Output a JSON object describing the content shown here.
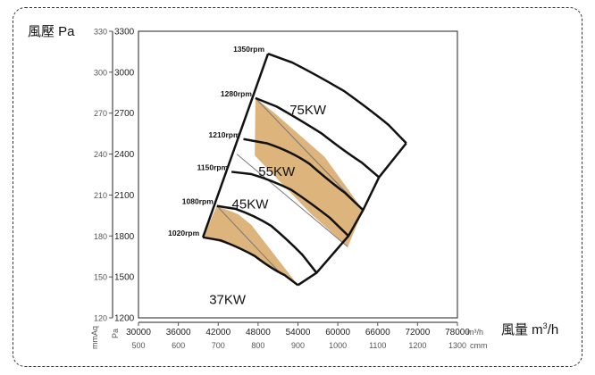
{
  "chart_data": {
    "type": "fan_curve",
    "y_title": "風壓 Pa",
    "y_unit_mmaq": "mmAq",
    "y_pa_ticks": [
      3300,
      3000,
      2700,
      2400,
      2100,
      1800,
      1500,
      1200
    ],
    "y_mmaq_ticks": [
      330,
      300,
      270,
      240,
      210,
      180,
      150,
      120
    ],
    "ylim_pa": [
      1200,
      3300
    ],
    "x_title": "風量 m³/h",
    "x_unit_pa_label": "Pa",
    "x_unit_m3h": "m³/h",
    "x_unit_cmm": "cmm",
    "x_m3h_ticks": [
      30000,
      36000,
      42000,
      48000,
      54000,
      60000,
      66000,
      72000,
      78000
    ],
    "x_cmm_ticks": [
      500,
      600,
      700,
      800,
      900,
      1000,
      1100,
      1200,
      1300
    ],
    "xlim_m3h": [
      30000,
      78000
    ],
    "rpm_curves": [
      {
        "label": "1350rpm",
        "points": [
          [
            49500,
            3135
          ],
          [
            56800,
            2980
          ],
          [
            65000,
            2720
          ],
          [
            70300,
            2480
          ]
        ]
      },
      {
        "label": "1280rpm",
        "points": [
          [
            47600,
            2810
          ],
          [
            54000,
            2660
          ],
          [
            61000,
            2420
          ],
          [
            66200,
            2230
          ]
        ]
      },
      {
        "label": "1210rpm",
        "points": [
          [
            45800,
            2510
          ],
          [
            53000,
            2420
          ],
          [
            58500,
            2210
          ],
          [
            63800,
            1990
          ]
        ]
      },
      {
        "label": "1150rpm",
        "points": [
          [
            44000,
            2270
          ],
          [
            50000,
            2210
          ],
          [
            56000,
            2040
          ],
          [
            61600,
            1800
          ]
        ]
      },
      {
        "label": "1080rpm",
        "points": [
          [
            41800,
            2020
          ],
          [
            47500,
            1950
          ],
          [
            52500,
            1770
          ],
          [
            56800,
            1530
          ]
        ]
      },
      {
        "label": "1020rpm",
        "points": [
          [
            39700,
            1790
          ],
          [
            45000,
            1720
          ],
          [
            50000,
            1560
          ],
          [
            54000,
            1440
          ]
        ]
      }
    ],
    "power_zones": [
      {
        "label": "37KW",
        "shaded": true
      },
      {
        "label": "45KW",
        "shaded": false
      },
      {
        "label": "55KW",
        "shaded": true
      },
      {
        "label": "75KW",
        "shaded": false
      }
    ],
    "colors": {
      "shade": "#dcb47c",
      "line": "#111111",
      "boundary": "#777777"
    }
  }
}
